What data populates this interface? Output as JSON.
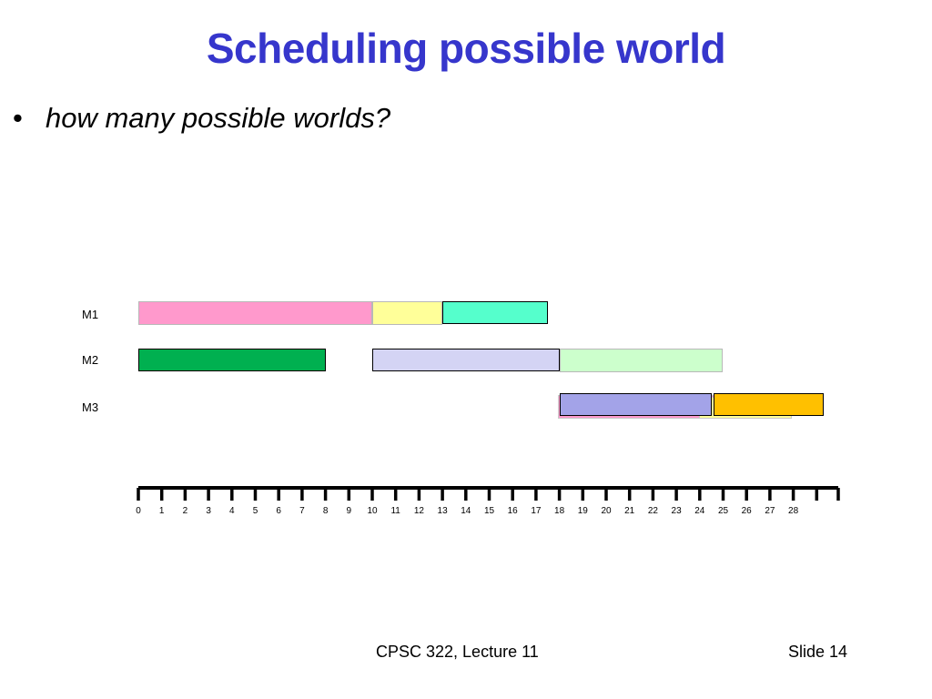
{
  "slide": {
    "title": "Scheduling possible world",
    "bullet_symbol": "•",
    "bullet_text": "how many possible worlds?",
    "footer_course": "CPSC 322, Lecture 11",
    "footer_slide": "Slide 14"
  },
  "machines": [
    "M1",
    "M2",
    "M3"
  ],
  "time_axis": {
    "ticks": [
      "0",
      "1",
      "2",
      "3",
      "4",
      "5",
      "6",
      "7",
      "8",
      "9",
      "10",
      "11",
      "12",
      "13",
      "14",
      "15",
      "16",
      "17",
      "18",
      "19",
      "20",
      "21",
      "22",
      "23",
      "24",
      "25",
      "26",
      "27",
      "28"
    ]
  },
  "tasks": [
    {
      "machine": "M1",
      "start": 0,
      "end": 10,
      "color": "#ff99cc",
      "outlined": false
    },
    {
      "machine": "M1",
      "start": 10,
      "end": 13,
      "color": "#ffff99",
      "outlined": false
    },
    {
      "machine": "M1",
      "start": 13,
      "end": 17.5,
      "color": "#55ffcc",
      "outlined": true
    },
    {
      "machine": "M2",
      "start": 0,
      "end": 8,
      "color": "#00b050",
      "outlined": true
    },
    {
      "machine": "M2",
      "start": 10,
      "end": 18,
      "color": "#d4d4f4",
      "outlined": true
    },
    {
      "machine": "M2",
      "start": 18,
      "end": 25,
      "color": "#ccffcc",
      "outlined": false
    },
    {
      "machine": "M3",
      "start": 18,
      "end": 24.5,
      "color": "#a3a3e8",
      "outlined": true
    },
    {
      "machine": "M3",
      "start": 24.6,
      "end": 29.3,
      "color": "#ffc000",
      "outlined": true
    }
  ]
}
